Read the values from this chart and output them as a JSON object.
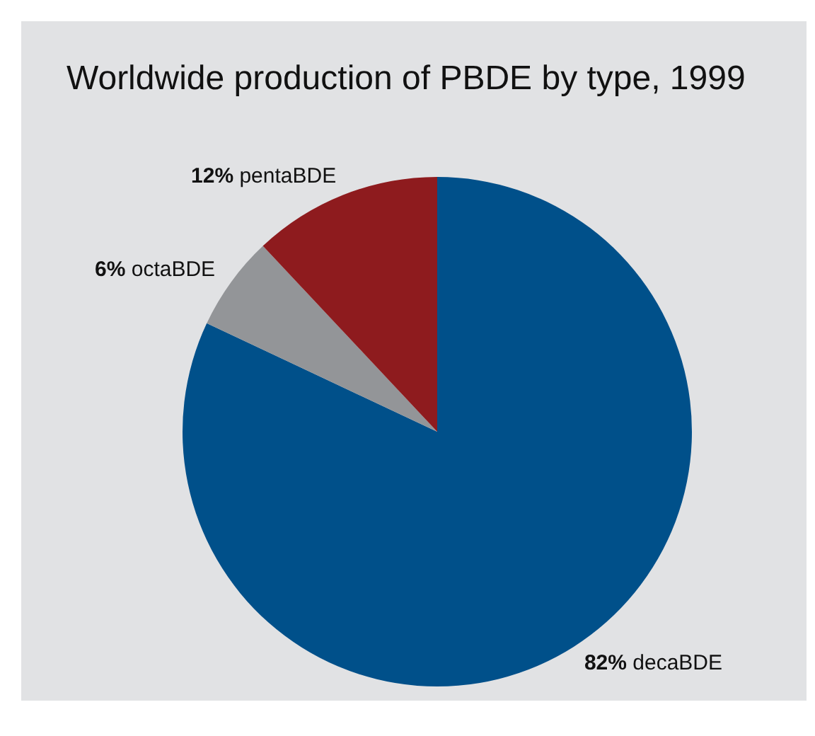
{
  "chart_data": {
    "type": "pie",
    "title": "Worldwide production of PBDE by type, 1999",
    "categories": [
      "decaBDE",
      "octaBDE",
      "pentaBDE"
    ],
    "values": [
      82,
      6,
      12
    ],
    "colors": [
      "#00508a",
      "#939598",
      "#8e1b1e"
    ],
    "value_labels": [
      "82%",
      "6%",
      "12%"
    ],
    "legend": false
  }
}
